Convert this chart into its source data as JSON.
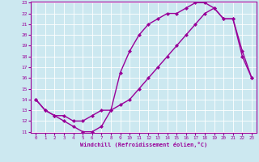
{
  "xlabel": "Windchill (Refroidissement éolien,°C)",
  "bg_color": "#cce8f0",
  "line_color": "#990099",
  "curve1_x": [
    0,
    1,
    2,
    3,
    4,
    5,
    6,
    7,
    8,
    9,
    10,
    11,
    12,
    13,
    14,
    15,
    16,
    17,
    18,
    19,
    20,
    21,
    22,
    23
  ],
  "curve1_y": [
    14,
    13,
    12.5,
    12,
    11.5,
    11,
    11,
    11.5,
    13,
    16.5,
    18.5,
    20,
    21,
    21.5,
    22,
    22,
    22.5,
    23,
    23,
    22.5,
    21.5,
    21.5,
    18,
    16
  ],
  "curve2_x": [
    0,
    1,
    2,
    3,
    4,
    5,
    6,
    7,
    8,
    9,
    10,
    11,
    12,
    13,
    14,
    15,
    16,
    17,
    18,
    19,
    20,
    21,
    22,
    23
  ],
  "curve2_y": [
    14,
    13,
    12.5,
    12.5,
    12,
    12,
    12.5,
    13,
    13,
    13.5,
    14,
    15,
    16,
    17,
    18,
    19,
    20,
    21,
    22,
    22.5,
    21.5,
    21.5,
    18.5,
    16
  ],
  "xlim_min": -0.5,
  "xlim_max": 23.5,
  "ylim_min": 11,
  "ylim_max": 23,
  "xticks": [
    0,
    1,
    2,
    3,
    4,
    5,
    6,
    7,
    8,
    9,
    10,
    11,
    12,
    13,
    14,
    15,
    16,
    17,
    18,
    19,
    20,
    21,
    22,
    23
  ],
  "yticks": [
    11,
    12,
    13,
    14,
    15,
    16,
    17,
    18,
    19,
    20,
    21,
    22,
    23
  ],
  "marker": "D",
  "markersize": 2.5,
  "linewidth": 1.0
}
